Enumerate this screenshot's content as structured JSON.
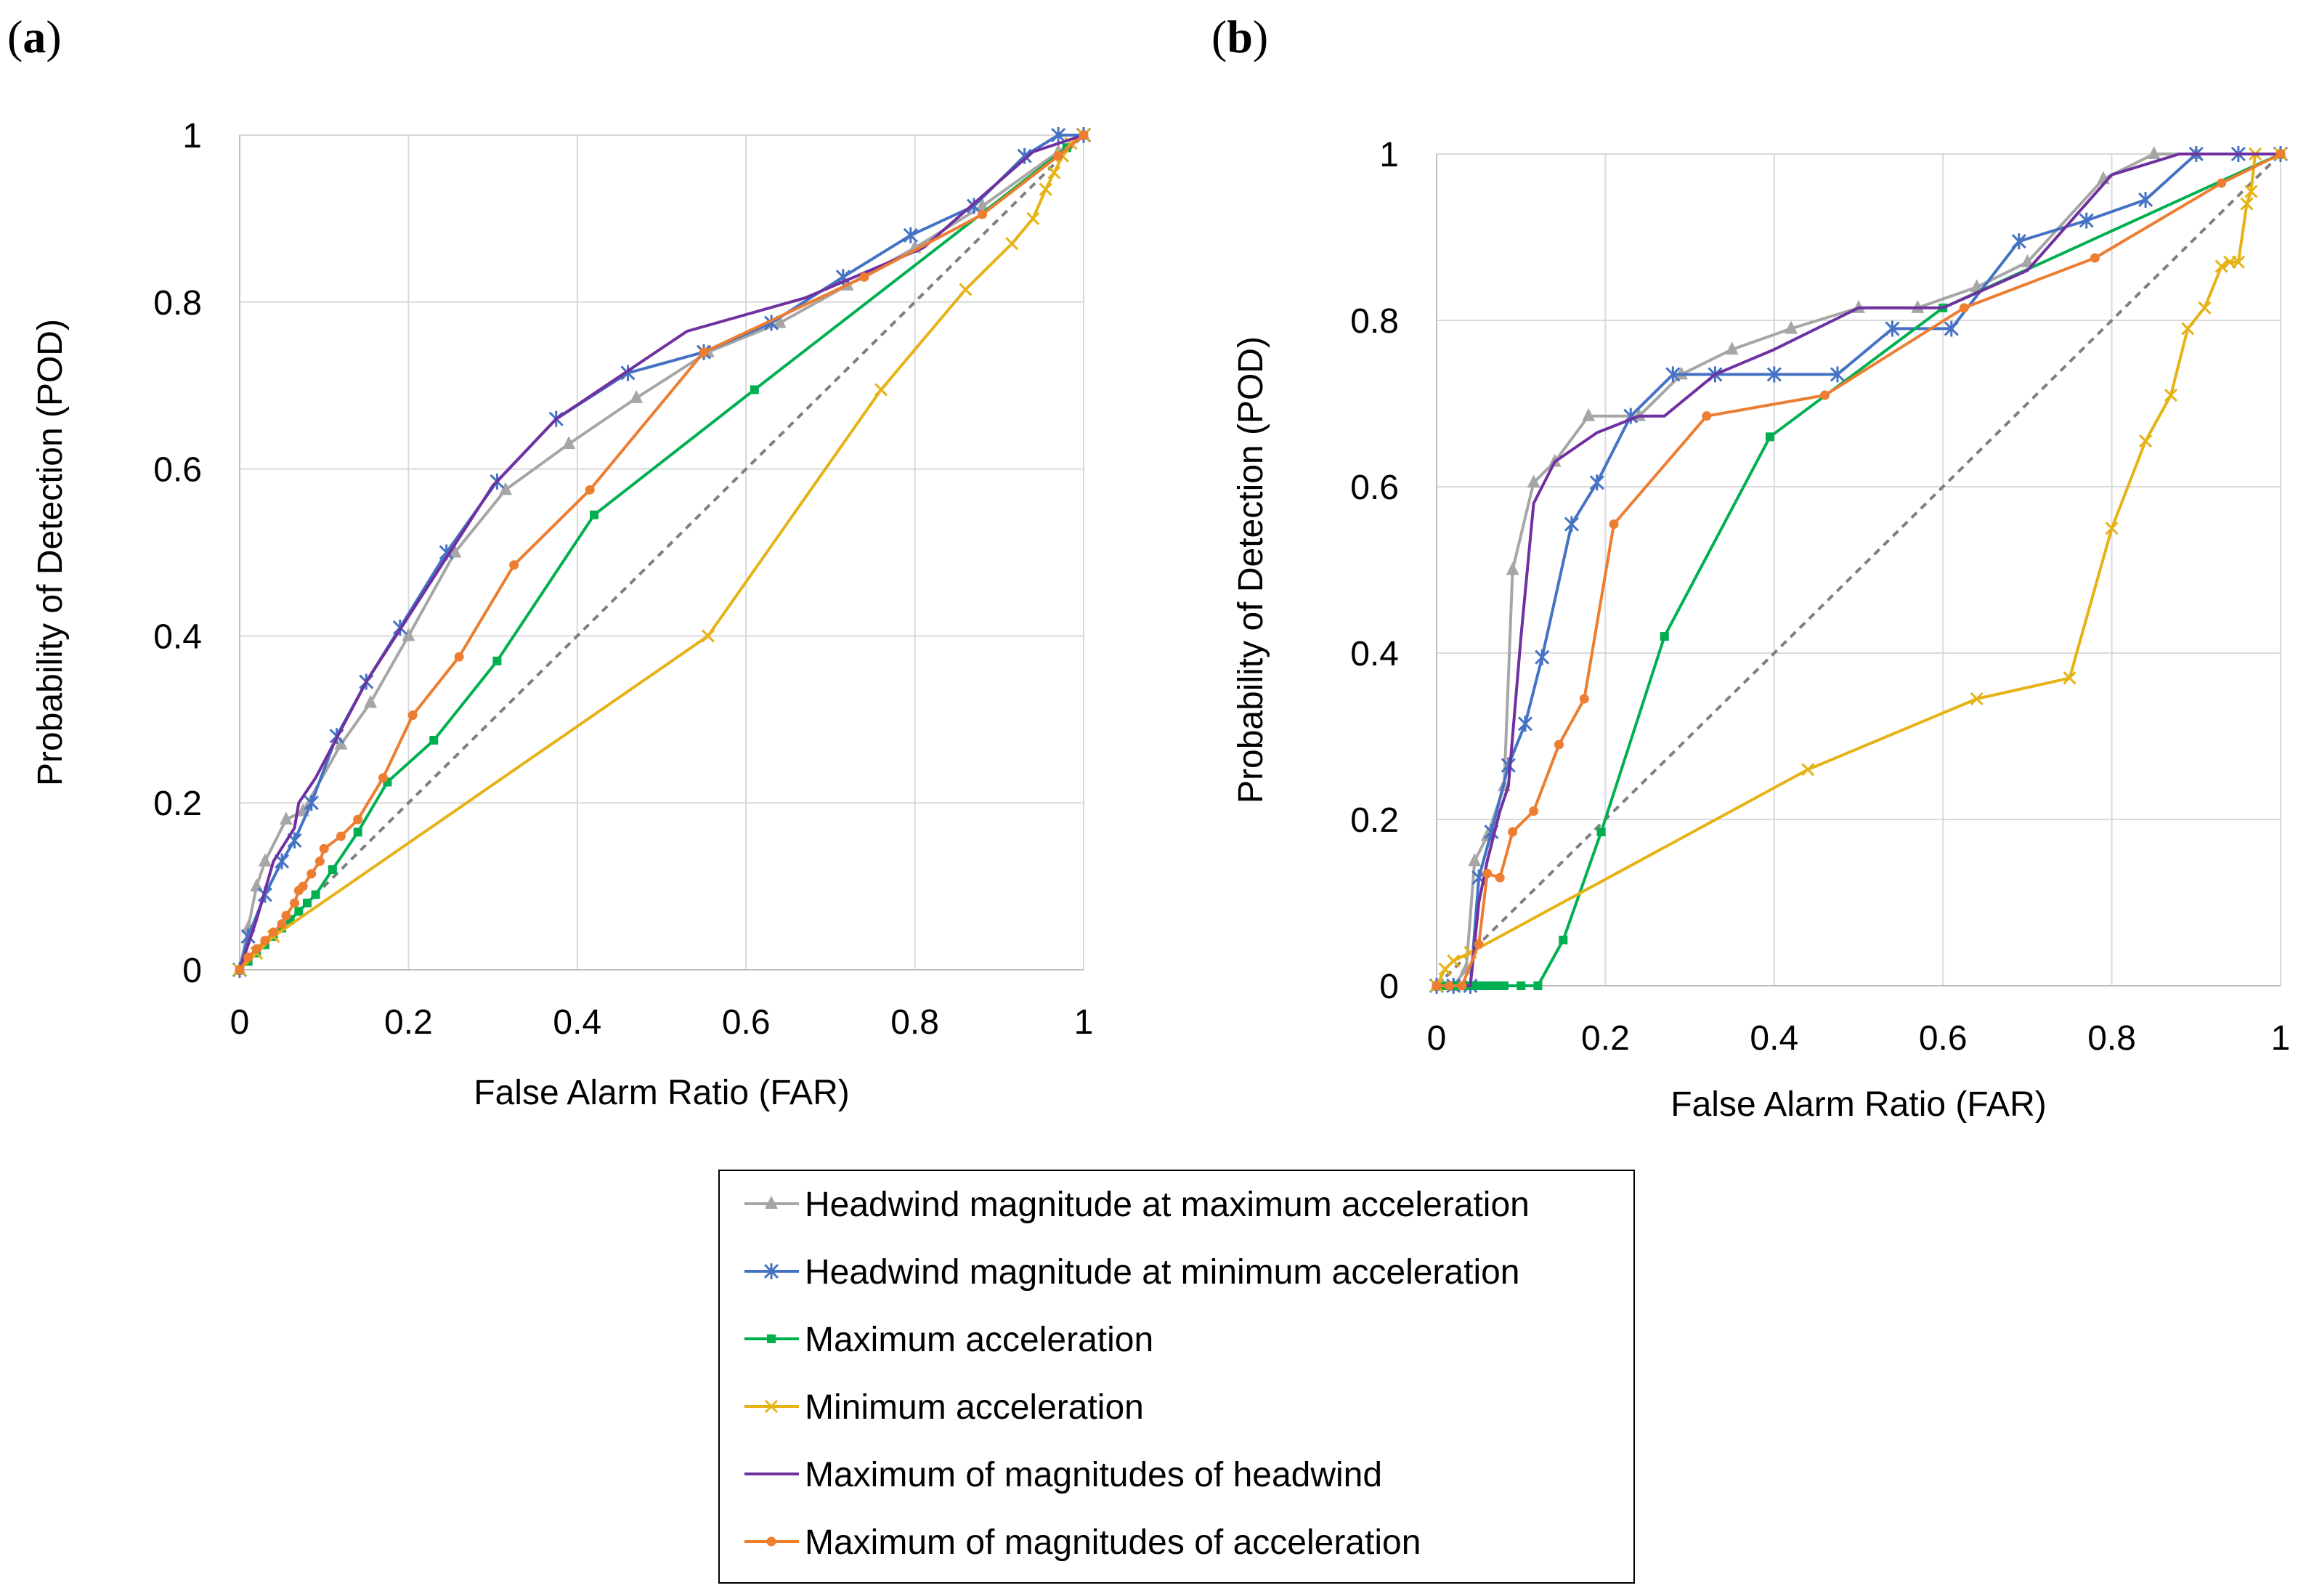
{
  "chart_data": [
    {
      "type": "line",
      "panel": "(a)",
      "panel_letter": "a",
      "xlabel": "False Alarm Ratio (FAR)",
      "ylabel": "Probability of Detection  (POD)",
      "xlim": [
        0,
        1
      ],
      "ylim": [
        0,
        1
      ],
      "xticks": [
        0,
        0.2,
        0.4,
        0.6,
        0.8,
        1
      ],
      "yticks": [
        0,
        0.2,
        0.4,
        0.6,
        0.8,
        1
      ],
      "xtick_labels": [
        "0",
        "0.2",
        "0.4",
        "0.6",
        "0.8",
        "1"
      ],
      "ytick_labels": [
        "0",
        "0.2",
        "0.4",
        "0.6",
        "0.8",
        "1"
      ],
      "grid": true,
      "reference_line": {
        "style": "dashed",
        "x": [
          0,
          1
        ],
        "y": [
          0,
          1
        ]
      },
      "series": [
        {
          "name": "Headwind magnitude at maximum acceleration",
          "x": [
            0,
            0.01,
            0.02,
            0.03,
            0.055,
            0.075,
            0.12,
            0.155,
            0.2,
            0.255,
            0.315,
            0.39,
            0.47,
            0.555,
            0.64,
            0.72,
            0.8,
            0.88,
            0.97,
            1
          ],
          "y": [
            0,
            0.05,
            0.1,
            0.13,
            0.18,
            0.19,
            0.27,
            0.32,
            0.4,
            0.5,
            0.575,
            0.63,
            0.685,
            0.74,
            0.775,
            0.82,
            0.865,
            0.915,
            0.98,
            1
          ]
        },
        {
          "name": "Headwind magnitude at minimum acceleration",
          "x": [
            0,
            0.01,
            0.03,
            0.05,
            0.065,
            0.085,
            0.115,
            0.15,
            0.19,
            0.245,
            0.305,
            0.375,
            0.46,
            0.55,
            0.63,
            0.715,
            0.795,
            0.87,
            0.93,
            0.97,
            1
          ],
          "y": [
            0,
            0.04,
            0.09,
            0.13,
            0.155,
            0.2,
            0.28,
            0.345,
            0.41,
            0.5,
            0.585,
            0.66,
            0.715,
            0.74,
            0.775,
            0.83,
            0.88,
            0.915,
            0.975,
            1,
            1
          ]
        },
        {
          "name": "Maximum acceleration",
          "x": [
            0,
            0.01,
            0.02,
            0.03,
            0.04,
            0.05,
            0.06,
            0.07,
            0.08,
            0.09,
            0.11,
            0.14,
            0.175,
            0.23,
            0.305,
            0.42,
            0.61,
            0.98,
            1
          ],
          "y": [
            0,
            0.01,
            0.02,
            0.03,
            0.04,
            0.05,
            0.06,
            0.07,
            0.08,
            0.09,
            0.12,
            0.165,
            0.225,
            0.275,
            0.37,
            0.545,
            0.695,
            0.985,
            1
          ]
        },
        {
          "name": "Minimum acceleration",
          "x": [
            0,
            0.02,
            0.04,
            0.555,
            0.76,
            0.86,
            0.915,
            0.94,
            0.955,
            0.965,
            0.975,
            0.985,
            1
          ],
          "y": [
            0,
            0.02,
            0.04,
            0.4,
            0.695,
            0.815,
            0.87,
            0.9,
            0.935,
            0.955,
            0.975,
            0.99,
            1
          ]
        },
        {
          "name": "Maximum of magnitudes of headwind",
          "x": [
            0,
            0.02,
            0.04,
            0.065,
            0.07,
            0.09,
            0.15,
            0.3,
            0.375,
            0.53,
            0.67,
            0.81,
            0.94,
            1
          ],
          "y": [
            0,
            0.06,
            0.13,
            0.17,
            0.2,
            0.23,
            0.345,
            0.58,
            0.66,
            0.765,
            0.805,
            0.865,
            0.98,
            1
          ]
        },
        {
          "name": "Maximum of magnitudes of acceleration",
          "x": [
            0,
            0.01,
            0.02,
            0.03,
            0.04,
            0.05,
            0.055,
            0.065,
            0.07,
            0.075,
            0.085,
            0.095,
            0.1,
            0.12,
            0.14,
            0.17,
            0.205,
            0.26,
            0.325,
            0.415,
            0.55,
            0.74,
            0.88,
            0.97,
            1
          ],
          "y": [
            0,
            0.015,
            0.025,
            0.035,
            0.045,
            0.055,
            0.065,
            0.08,
            0.095,
            0.1,
            0.115,
            0.13,
            0.145,
            0.16,
            0.18,
            0.23,
            0.305,
            0.375,
            0.485,
            0.575,
            0.74,
            0.83,
            0.905,
            0.975,
            1
          ]
        }
      ]
    },
    {
      "type": "line",
      "panel": "(b)",
      "panel_letter": "b",
      "xlabel": "False Alarm Ratio (FAR)",
      "ylabel": "Probability of Detection  (POD)",
      "xlim": [
        0,
        1
      ],
      "ylim": [
        0,
        1
      ],
      "xticks": [
        0,
        0.2,
        0.4,
        0.6,
        0.8,
        1
      ],
      "yticks": [
        0,
        0.2,
        0.4,
        0.6,
        0.8,
        1
      ],
      "xtick_labels": [
        "0",
        "0.2",
        "0.4",
        "0.6",
        "0.8",
        "1"
      ],
      "ytick_labels": [
        "0",
        "0.2",
        "0.4",
        "0.6",
        "0.8",
        "1"
      ],
      "grid": true,
      "reference_line": {
        "style": "dashed",
        "x": [
          0,
          1
        ],
        "y": [
          0,
          1
        ]
      },
      "series": [
        {
          "name": "Headwind magnitude at maximum acceleration",
          "x": [
            0,
            0.02,
            0.035,
            0.045,
            0.06,
            0.08,
            0.09,
            0.115,
            0.14,
            0.18,
            0.24,
            0.29,
            0.35,
            0.42,
            0.5,
            0.57,
            0.64,
            0.7,
            0.79,
            0.85,
            0.9,
            1
          ],
          "y": [
            0,
            0,
            0.02,
            0.15,
            0.18,
            0.24,
            0.5,
            0.605,
            0.63,
            0.685,
            0.685,
            0.735,
            0.765,
            0.79,
            0.815,
            0.815,
            0.84,
            0.87,
            0.97,
            1,
            1,
            1
          ],
          "raw": true
        },
        {
          "name": "Headwind magnitude at minimum acceleration",
          "x": [
            0,
            0.02,
            0.04,
            0.05,
            0.065,
            0.085,
            0.105,
            0.125,
            0.16,
            0.19,
            0.23,
            0.28,
            0.33,
            0.4,
            0.475,
            0.54,
            0.61,
            0.69,
            0.77,
            0.84,
            0.9,
            0.95,
            1
          ],
          "y": [
            0,
            0,
            0,
            0.13,
            0.185,
            0.265,
            0.315,
            0.395,
            0.555,
            0.605,
            0.685,
            0.735,
            0.735,
            0.735,
            0.735,
            0.79,
            0.79,
            0.895,
            0.92,
            0.945,
            1,
            1,
            1
          ]
        },
        {
          "name": "Maximum acceleration",
          "x": [
            0,
            0.01,
            0.02,
            0.03,
            0.04,
            0.05,
            0.06,
            0.07,
            0.08,
            0.1,
            0.12,
            0.15,
            0.195,
            0.27,
            0.395,
            0.6,
            1
          ],
          "y": [
            0,
            0,
            0,
            0,
            0,
            0,
            0,
            0,
            0,
            0,
            0,
            0.055,
            0.185,
            0.42,
            0.66,
            0.815,
            1
          ]
        },
        {
          "name": "Minimum acceleration",
          "x": [
            0,
            0.01,
            0.02,
            0.04,
            0.44,
            0.64,
            0.75,
            0.8,
            0.84,
            0.87,
            0.89,
            0.91,
            0.93,
            0.94,
            0.95,
            0.96,
            0.965,
            0.97,
            1
          ],
          "y": [
            0,
            0.02,
            0.03,
            0.04,
            0.26,
            0.345,
            0.37,
            0.55,
            0.655,
            0.71,
            0.79,
            0.815,
            0.865,
            0.87,
            0.87,
            0.94,
            0.955,
            1,
            1
          ]
        },
        {
          "name": "Maximum of magnitudes of headwind",
          "x": [
            0,
            0.02,
            0.04,
            0.05,
            0.06,
            0.075,
            0.085,
            0.1,
            0.115,
            0.14,
            0.19,
            0.24,
            0.27,
            0.33,
            0.4,
            0.5,
            0.6,
            0.7,
            0.8,
            0.88,
            1
          ],
          "y": [
            0,
            0,
            0,
            0.1,
            0.15,
            0.21,
            0.24,
            0.42,
            0.58,
            0.63,
            0.665,
            0.685,
            0.685,
            0.735,
            0.765,
            0.815,
            0.815,
            0.86,
            0.975,
            1,
            1
          ]
        },
        {
          "name": "Maximum of magnitudes of acceleration",
          "x": [
            0,
            0.015,
            0.03,
            0.05,
            0.06,
            0.075,
            0.09,
            0.115,
            0.145,
            0.175,
            0.21,
            0.32,
            0.46,
            0.625,
            0.78,
            0.93,
            1
          ],
          "y": [
            0,
            0,
            0,
            0.05,
            0.135,
            0.13,
            0.185,
            0.21,
            0.29,
            0.345,
            0.555,
            0.685,
            0.71,
            0.815,
            0.875,
            0.965,
            1
          ]
        }
      ]
    }
  ],
  "legend": {
    "placement": "bottom-center",
    "entries": [
      {
        "label": "Headwind magnitude at maximum acceleration",
        "color": "#a6a6a6",
        "marker": "triangle"
      },
      {
        "label": "Headwind magnitude at minimum acceleration",
        "color": "#4472c4",
        "marker": "star"
      },
      {
        "label": "Maximum acceleration",
        "color": "#00b050",
        "marker": "square"
      },
      {
        "label": "Minimum acceleration",
        "color": "#e6b215",
        "marker": "x"
      },
      {
        "label": "Maximum of magnitudes of headwind",
        "color": "#7030a0",
        "marker": "none"
      },
      {
        "label": "Maximum of magnitudes of acceleration",
        "color": "#ed7d31",
        "marker": "circle"
      }
    ]
  }
}
